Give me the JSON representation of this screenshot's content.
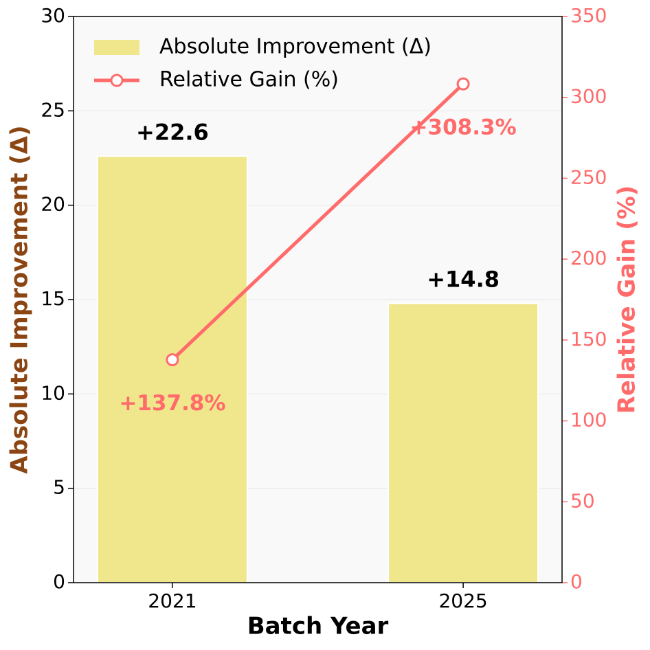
{
  "chart_data": {
    "type": "bar",
    "x_label": "Batch Year",
    "y_label": "Absolute Improvement (Δ)",
    "y2_label": "Relative Gain (%)",
    "categories": [
      "2021",
      "2025"
    ],
    "series": [
      {
        "name": "Absolute Improvement (Δ)",
        "type": "bar",
        "color": "#f0e68c",
        "values": [
          22.6,
          14.8
        ],
        "value_labels": [
          "+22.6",
          "+14.8"
        ]
      },
      {
        "name": "Relative Gain (%)",
        "type": "line",
        "axis": "y2",
        "color": "#ff6b6b",
        "values": [
          137.8,
          308.3
        ],
        "value_labels": [
          "+137.8%",
          "+308.3%"
        ]
      }
    ],
    "ylim": [
      0,
      30
    ],
    "yticks": [
      0,
      5,
      10,
      15,
      20,
      25,
      30
    ],
    "y2lim": [
      0,
      350
    ],
    "y2ticks": [
      0,
      50,
      100,
      150,
      200,
      250,
      300,
      350
    ],
    "grid": true,
    "legend": "upper left",
    "y_label_color": "#8b4513",
    "y2_color": "#ff6b6b"
  }
}
